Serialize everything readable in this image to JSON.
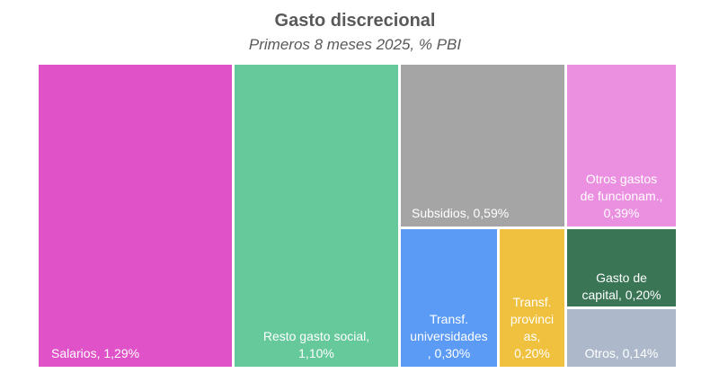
{
  "chart_data": {
    "type": "treemap",
    "title": "Gasto discrecional",
    "subtitle": "Primeros 8 meses 2025, % PBI",
    "items": [
      {
        "name": "Salarios",
        "value": 1.29,
        "label": "Salarios, 1,29%",
        "color": "#E052C8"
      },
      {
        "name": "Resto gasto social",
        "value": 1.1,
        "label": "Resto gasto social, 1,10%",
        "color": "#66C99B"
      },
      {
        "name": "Subsidios",
        "value": 0.59,
        "label": "Subsidios, 0,59%",
        "color": "#A5A5A5"
      },
      {
        "name": "Otros gastos de funcionam.",
        "value": 0.39,
        "label": "Otros gastos de funcionam., 0,39%",
        "color": "#EB8FE0"
      },
      {
        "name": "Transf. universidades",
        "value": 0.3,
        "label": "Transf. universidades, 0,30%",
        "color": "#5B9BF5"
      },
      {
        "name": "Transf. provincias",
        "value": 0.2,
        "label": "Transf. provincias, 0,20%",
        "color": "#F0C13E"
      },
      {
        "name": "Gasto de capital",
        "value": 0.2,
        "label": "Gasto de capital, 0,20%",
        "color": "#3A7556"
      },
      {
        "name": "Otros",
        "value": 0.14,
        "label": "Otros, 0,14%",
        "color": "#ADB9CA"
      }
    ]
  }
}
